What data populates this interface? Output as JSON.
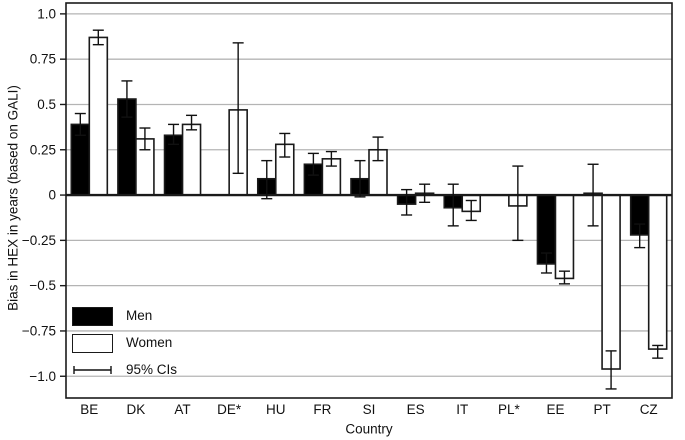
{
  "figure": {
    "ylabel": "Bias in HEX in years (based on GALI)",
    "xlabel": "Country",
    "legend": {
      "men": "Men",
      "women": "Women",
      "ci": "95% CIs"
    }
  },
  "colors": {
    "men_bar": "#000000",
    "women_bar": "#ffffff",
    "bar_border": "#1a1a1a",
    "gridline": "#b4b4b4",
    "axis": "#1a1a1a",
    "text": "#111111",
    "background": "#ffffff"
  },
  "chart_data": {
    "type": "bar",
    "title": "",
    "xlabel": "Country",
    "ylabel": "Bias in HEX in years (based on GALI)",
    "categories": [
      "BE",
      "DK",
      "AT",
      "DE*",
      "HU",
      "FR",
      "SI",
      "ES",
      "IT",
      "PL*",
      "EE",
      "PT",
      "CZ"
    ],
    "series": [
      {
        "name": "Men",
        "color": "#000000",
        "values": [
          0.39,
          0.53,
          0.33,
          null,
          0.09,
          0.17,
          0.09,
          -0.05,
          -0.07,
          null,
          -0.38,
          0.01,
          -0.22
        ],
        "ci_low": [
          0.33,
          0.43,
          0.28,
          null,
          -0.02,
          0.11,
          -0.01,
          -0.11,
          -0.17,
          null,
          -0.43,
          -0.17,
          -0.29
        ],
        "ci_high": [
          0.45,
          0.63,
          0.39,
          null,
          0.19,
          0.23,
          0.19,
          0.03,
          0.06,
          null,
          -0.32,
          0.17,
          -0.16
        ]
      },
      {
        "name": "Women",
        "color": "#ffffff",
        "values": [
          0.87,
          0.31,
          0.39,
          0.47,
          0.28,
          0.2,
          0.25,
          0.01,
          -0.09,
          -0.06,
          -0.46,
          -0.96,
          -0.85
        ],
        "ci_low": [
          0.83,
          0.25,
          0.36,
          0.12,
          0.21,
          0.16,
          0.19,
          -0.04,
          -0.14,
          -0.25,
          -0.49,
          -1.07,
          -0.9
        ],
        "ci_high": [
          0.91,
          0.37,
          0.44,
          0.84,
          0.34,
          0.24,
          0.32,
          0.06,
          -0.03,
          0.16,
          -0.42,
          -0.86,
          -0.83
        ]
      }
    ],
    "error_bars": "95% CIs",
    "ylim": [
      -1.12,
      1.06
    ],
    "yticks": [
      {
        "value": 1.0,
        "label": "1.0"
      },
      {
        "value": 0.75,
        "label": "0.75"
      },
      {
        "value": 0.5,
        "label": "0.5"
      },
      {
        "value": 0.25,
        "label": "0.25"
      },
      {
        "value": 0,
        "label": "0"
      },
      {
        "value": -0.25,
        "label": "−0.25"
      },
      {
        "value": -0.5,
        "label": "−0.5"
      },
      {
        "value": -0.75,
        "label": "−0.75"
      },
      {
        "value": -1.0,
        "label": "−1.0"
      }
    ],
    "grid": true,
    "legend_position": "lower left"
  }
}
